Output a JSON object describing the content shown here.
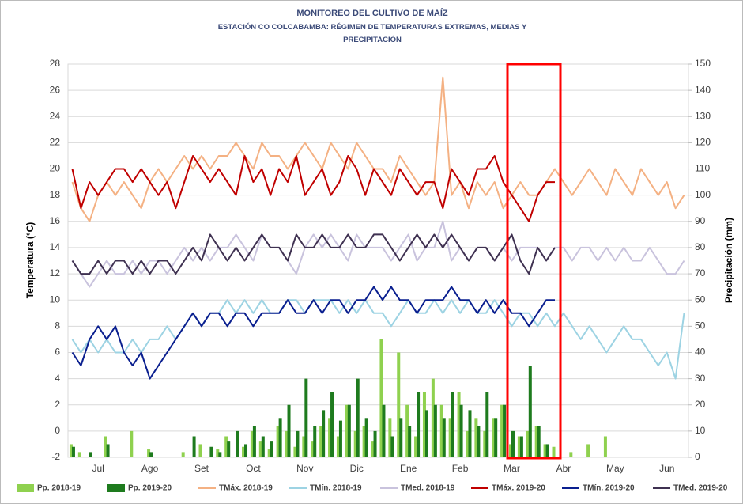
{
  "chart_data": {
    "type": "combo",
    "title": "MONITOREO DEL CULTIVO DE MAÍZ",
    "subtitle": "ESTACIÓN  CO COLCABAMBA: RÉGIMEN DE TEMPERATURAS EXTREMAS, MEDIAS Y PRECIPITACIÓN",
    "y_label": "Temperatura (°C)",
    "y2_label": "Precipitación (mm)",
    "categories": [
      null,
      null,
      null,
      "Jul",
      null,
      null,
      null,
      null,
      null,
      "Ago",
      null,
      null,
      null,
      null,
      null,
      "Set",
      null,
      null,
      null,
      null,
      null,
      "Oct",
      null,
      null,
      null,
      null,
      null,
      "Nov",
      null,
      null,
      null,
      null,
      null,
      "Dic",
      null,
      null,
      null,
      null,
      null,
      "Ene",
      null,
      null,
      null,
      null,
      null,
      "Feb",
      null,
      null,
      null,
      null,
      null,
      "Mar",
      null,
      null,
      null,
      null,
      null,
      "Abr",
      null,
      null,
      null,
      null,
      null,
      "May",
      null,
      null,
      null,
      null,
      null,
      "Jun",
      null,
      null
    ],
    "ylim": [
      -2,
      28
    ],
    "yticks": [
      -2,
      0,
      2,
      4,
      6,
      8,
      10,
      12,
      14,
      16,
      18,
      20,
      22,
      24,
      26,
      28
    ],
    "y2lim": [
      0,
      150
    ],
    "y2ticks": [
      0,
      10,
      20,
      30,
      40,
      50,
      60,
      70,
      80,
      90,
      100,
      110,
      120,
      130,
      140,
      150
    ],
    "grid": true,
    "legend": "bottom",
    "series": [
      {
        "name": "Pp. 2018-19",
        "type": "bar",
        "axis": "y2",
        "color": "#8fd14f",
        "values": [
          5,
          2,
          0,
          0,
          8,
          0,
          0,
          10,
          0,
          3,
          0,
          0,
          0,
          2,
          0,
          5,
          0,
          3,
          8,
          0,
          4,
          10,
          6,
          3,
          12,
          10,
          4,
          8,
          6,
          12,
          15,
          8,
          20,
          10,
          12,
          6,
          45,
          15,
          40,
          20,
          8,
          25,
          30,
          20,
          15,
          25,
          10,
          15,
          10,
          15,
          20,
          5,
          8,
          10,
          12,
          5,
          4,
          0,
          2,
          0,
          5,
          0,
          8,
          0,
          0,
          0,
          0,
          0,
          0,
          0,
          0,
          0
        ]
      },
      {
        "name": "Pp. 2019-20",
        "type": "bar",
        "axis": "y2",
        "color": "#1e7b1e",
        "values": [
          4,
          0,
          2,
          0,
          5,
          0,
          0,
          0,
          0,
          2,
          0,
          0,
          0,
          0,
          8,
          0,
          4,
          2,
          6,
          10,
          5,
          12,
          8,
          6,
          15,
          20,
          10,
          30,
          12,
          18,
          25,
          14,
          20,
          30,
          15,
          10,
          20,
          8,
          15,
          12,
          25,
          18,
          20,
          15,
          25,
          20,
          18,
          12,
          25,
          15,
          20,
          10,
          8,
          35,
          12,
          5,
          0,
          null,
          null,
          null,
          null,
          null,
          null,
          null,
          null,
          null,
          null,
          null,
          null,
          null,
          null,
          null
        ]
      },
      {
        "name": "TMáx. 2018-19",
        "type": "line",
        "color": "#f4b183",
        "values": [
          19,
          17,
          16,
          18,
          19,
          18,
          19,
          18,
          17,
          19,
          20,
          19,
          20,
          21,
          20,
          21,
          20,
          21,
          21,
          22,
          21,
          20,
          22,
          21,
          21,
          20,
          21,
          22,
          21,
          20,
          22,
          21,
          20,
          22,
          21,
          20,
          20,
          19,
          21,
          20,
          19,
          18,
          19,
          27,
          18,
          19,
          17,
          19,
          18,
          19,
          17,
          18,
          19,
          18,
          18,
          19,
          20,
          19,
          18,
          19,
          20,
          19,
          18,
          20,
          19,
          18,
          20,
          19,
          18,
          19,
          17,
          18
        ]
      },
      {
        "name": "TMín. 2018-19",
        "type": "line",
        "color": "#9dd3e3",
        "values": [
          7,
          6,
          7,
          6,
          7,
          6,
          6,
          7,
          6,
          7,
          7,
          8,
          7,
          8,
          9,
          8,
          9,
          9,
          10,
          9,
          10,
          9,
          10,
          9,
          9,
          10,
          10,
          9,
          10,
          10,
          10,
          9,
          10,
          9,
          10,
          9,
          9,
          8,
          9,
          10,
          9,
          9,
          10,
          9,
          10,
          9,
          10,
          9,
          9,
          10,
          9,
          8,
          9,
          9,
          8,
          9,
          8,
          9,
          8,
          7,
          8,
          7,
          6,
          7,
          8,
          7,
          7,
          6,
          5,
          6,
          4,
          9
        ]
      },
      {
        "name": "TMed. 2018-19",
        "type": "line",
        "color": "#c9c3dd",
        "values": [
          13,
          12,
          11,
          12,
          13,
          12,
          12,
          13,
          12,
          13,
          13,
          12,
          13,
          14,
          13,
          14,
          13,
          14,
          14,
          15,
          14,
          13,
          15,
          14,
          14,
          13,
          12,
          14,
          15,
          14,
          15,
          14,
          13,
          15,
          14,
          14,
          14,
          13,
          14,
          15,
          13,
          14,
          14,
          16,
          13,
          14,
          13,
          14,
          14,
          13,
          14,
          13,
          14,
          14,
          14,
          13,
          14,
          14,
          13,
          14,
          14,
          13,
          14,
          13,
          14,
          13,
          13,
          14,
          13,
          12,
          12,
          13
        ]
      },
      {
        "name": "TMáx. 2019-20",
        "type": "line",
        "color": "#c00000",
        "values": [
          20,
          17,
          19,
          18,
          19,
          20,
          20,
          19,
          20,
          19,
          18,
          19,
          17,
          19,
          21,
          20,
          19,
          20,
          19,
          18,
          21,
          19,
          20,
          18,
          20,
          19,
          21,
          18,
          19,
          20,
          18,
          19,
          21,
          20,
          18,
          20,
          19,
          18,
          20,
          19,
          18,
          19,
          19,
          17,
          20,
          19,
          18,
          20,
          20,
          21,
          19,
          18,
          17,
          16,
          18,
          19,
          19,
          null,
          null,
          null,
          null,
          null,
          null,
          null,
          null,
          null,
          null,
          null,
          null,
          null,
          null,
          null
        ]
      },
      {
        "name": "TMín. 2019-20",
        "type": "line",
        "color": "#0a1f8f",
        "values": [
          6,
          5,
          7,
          8,
          7,
          8,
          6,
          5,
          6,
          4,
          5,
          6,
          7,
          8,
          9,
          8,
          9,
          9,
          8,
          9,
          9,
          8,
          9,
          9,
          9,
          10,
          9,
          9,
          10,
          9,
          10,
          10,
          9,
          10,
          10,
          11,
          10,
          11,
          10,
          10,
          9,
          10,
          10,
          10,
          11,
          10,
          10,
          9,
          10,
          9,
          10,
          9,
          9,
          8,
          9,
          10,
          10,
          null,
          null,
          null,
          null,
          null,
          null,
          null,
          null,
          null,
          null,
          null,
          null,
          null,
          null,
          null
        ]
      },
      {
        "name": "TMed. 2019-20",
        "type": "line",
        "color": "#3f3151",
        "values": [
          13,
          12,
          12,
          13,
          12,
          13,
          13,
          12,
          13,
          12,
          13,
          13,
          12,
          13,
          14,
          13,
          15,
          14,
          13,
          14,
          13,
          14,
          15,
          14,
          14,
          13,
          15,
          14,
          14,
          15,
          14,
          14,
          15,
          14,
          14,
          15,
          15,
          14,
          13,
          14,
          15,
          14,
          15,
          14,
          15,
          14,
          13,
          14,
          14,
          13,
          14,
          15,
          13,
          12,
          14,
          13,
          14,
          null,
          null,
          null,
          null,
          null,
          null,
          null,
          null,
          null,
          null,
          null,
          null,
          null,
          null,
          null
        ]
      }
    ]
  }
}
